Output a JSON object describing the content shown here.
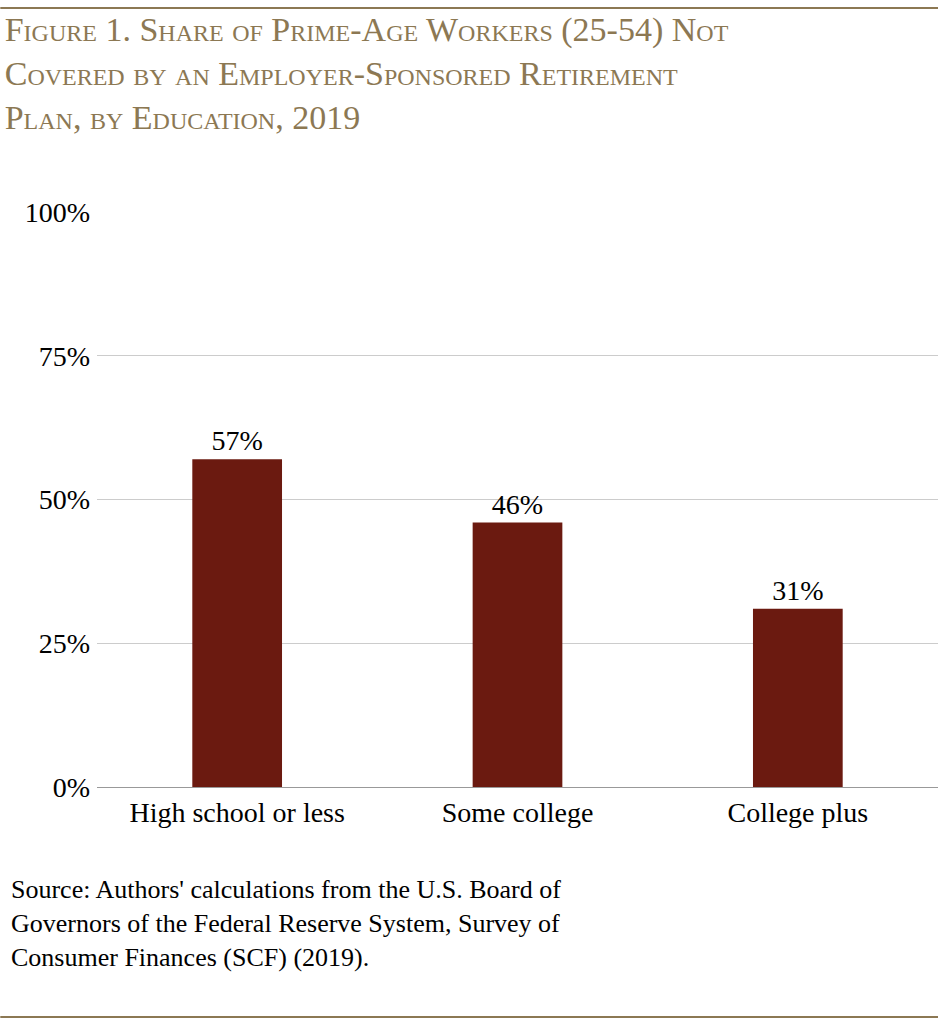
{
  "chart_data": {
    "type": "bar",
    "title": "Figure 1. Share of Prime-Age Workers (25-54) Not Covered by an Employer-Sponsored Retirement Plan, by Education, 2019",
    "categories": [
      "High school or less",
      "Some college",
      "College plus"
    ],
    "values": [
      57,
      46,
      31
    ],
    "value_labels": [
      "57%",
      "46%",
      "31%"
    ],
    "data_labels": true,
    "color": "#6b1a10",
    "ylim": [
      0,
      100
    ],
    "yticks": [
      {
        "value": 0,
        "label": "0%"
      },
      {
        "value": 25,
        "label": "25%"
      },
      {
        "value": 50,
        "label": "50%"
      },
      {
        "value": 75,
        "label": "75%"
      },
      {
        "value": 100,
        "label": "100%"
      }
    ],
    "grid": true,
    "source": "Source: Authors' calculations from the U.S. Board of Governors of the Federal Reserve System, Survey of Consumer Finances (SCF) (2019)."
  }
}
